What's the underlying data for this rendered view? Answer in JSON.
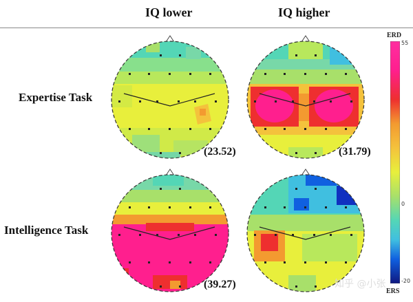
{
  "headers": {
    "col_low": "IQ lower",
    "col_high": "IQ higher"
  },
  "rows": {
    "expertise": "Expertise Task",
    "intelligence": "Intelligence Task"
  },
  "values": {
    "exp_low": "(23.52)",
    "exp_high": "(31.79)",
    "int_low": "(39.27)"
  },
  "colorbar": {
    "top_label": "ERD",
    "bottom_label": "ERS",
    "max": "55",
    "zero": "0",
    "min": "-20"
  },
  "watermark": "知乎 @小张"
}
